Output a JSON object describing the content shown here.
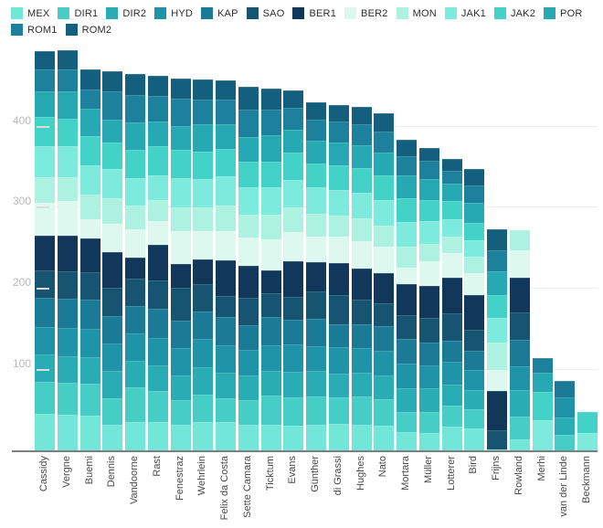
{
  "chart_data": {
    "type": "bar",
    "stacked": true,
    "legend_position": "top",
    "grid": true,
    "ylim": [
      0,
      494
    ],
    "yticks": [
      100,
      200,
      300,
      400
    ],
    "categories": [
      "Cassidy",
      "Vergne",
      "Buemi",
      "Dennis",
      "Vandoorne",
      "Rast",
      "Fenestraz",
      "Wehrlein",
      "Felix da Costa",
      "Sette Camara",
      "Ticktum",
      "Evans",
      "Günther",
      "di Grassi",
      "Hughes",
      "Nato",
      "Mortara",
      "Müller",
      "Lotterer",
      "Bird",
      "Frijns",
      "Rowland",
      "Merhi",
      "van der Linde",
      "Beckmann"
    ],
    "series": [
      {
        "name": "MEX",
        "color": "#72e6d9",
        "values": [
          46,
          45,
          44,
          33,
          36,
          36,
          33,
          36,
          36,
          33,
          33,
          32,
          33,
          34,
          33,
          32,
          24,
          22,
          30,
          28,
          2,
          15,
          0,
          0,
          0
        ]
      },
      {
        "name": "DIR1",
        "color": "#45cdc6",
        "values": [
          39,
          39,
          39,
          32,
          43,
          38,
          30,
          34,
          29,
          30,
          36,
          34,
          34,
          32,
          34,
          32,
          24,
          26,
          26,
          24,
          0,
          28,
          0,
          20,
          0
        ]
      },
      {
        "name": "DIR2",
        "color": "#2aacb5",
        "values": [
          34,
          33,
          33,
          34,
          32,
          32,
          30,
          34,
          32,
          30,
          30,
          32,
          32,
          30,
          30,
          30,
          30,
          30,
          26,
          24,
          0,
          32,
          0,
          22,
          0
        ]
      },
      {
        "name": "HYD",
        "color": "#1f93a8",
        "values": [
          34,
          35,
          35,
          34,
          34,
          34,
          34,
          34,
          34,
          32,
          32,
          34,
          30,
          32,
          30,
          30,
          30,
          28,
          28,
          24,
          0,
          30,
          0,
          24,
          0
        ]
      },
      {
        "name": "KAP",
        "color": "#1b7b96",
        "values": [
          36,
          36,
          36,
          34,
          34,
          36,
          34,
          34,
          34,
          30,
          34,
          30,
          34,
          28,
          30,
          30,
          30,
          28,
          26,
          24,
          0,
          32,
          0,
          21,
          0
        ]
      },
      {
        "name": "SAO",
        "color": "#175471",
        "values": [
          34,
          34,
          34,
          34,
          34,
          34,
          40,
          34,
          26,
          34,
          30,
          28,
          34,
          36,
          30,
          28,
          30,
          30,
          34,
          26,
          24,
          34,
          0,
          0,
          0
        ]
      },
      {
        "name": "BER1",
        "color": "#11375a",
        "values": [
          43,
          44,
          41,
          44,
          26,
          44,
          30,
          30,
          44,
          40,
          28,
          44,
          36,
          40,
          38,
          38,
          38,
          40,
          44,
          42,
          48,
          43,
          0,
          0,
          0
        ]
      },
      {
        "name": "BER2",
        "color": "#ddf8ee",
        "values": [
          40,
          42,
          24,
          35,
          34,
          30,
          40,
          35,
          36,
          34,
          38,
          36,
          32,
          32,
          34,
          32,
          20,
          30,
          30,
          28,
          26,
          34,
          0,
          0,
          0
        ]
      },
      {
        "name": "MON",
        "color": "#adf2e1",
        "values": [
          32,
          30,
          30,
          32,
          30,
          26,
          30,
          30,
          32,
          28,
          30,
          30,
          28,
          26,
          28,
          26,
          26,
          22,
          20,
          20,
          34,
          24,
          0,
          0,
          0
        ]
      },
      {
        "name": "JAK1",
        "color": "#7ceadc",
        "values": [
          38,
          38,
          36,
          36,
          34,
          30,
          36,
          34,
          36,
          34,
          34,
          34,
          32,
          32,
          32,
          32,
          30,
          28,
          22,
          20,
          30,
          0,
          38,
          0,
          22
        ]
      },
      {
        "name": "JAK2",
        "color": "#43d2c8",
        "values": [
          36,
          34,
          36,
          32,
          34,
          36,
          34,
          34,
          34,
          32,
          32,
          34,
          30,
          30,
          30,
          30,
          30,
          26,
          22,
          22,
          28,
          0,
          35,
          0,
          26
        ]
      },
      {
        "name": "POR",
        "color": "#26a9b3",
        "values": [
          32,
          34,
          34,
          29,
          34,
          30,
          30,
          34,
          30,
          30,
          32,
          28,
          28,
          28,
          28,
          28,
          28,
          26,
          22,
          24,
          30,
          0,
          24,
          0,
          0
        ]
      },
      {
        "name": "ROM1",
        "color": "#1d809d",
        "values": [
          27,
          27,
          24,
          34,
          34,
          32,
          34,
          30,
          30,
          34,
          32,
          27,
          26,
          26,
          26,
          26,
          24,
          22,
          16,
          22,
          26,
          0,
          18,
          0,
          0
        ]
      },
      {
        "name": "ROM2",
        "color": "#145e7e",
        "values": [
          22,
          23,
          25,
          25,
          26,
          25,
          24,
          25,
          24,
          28,
          26,
          22,
          21,
          21,
          21,
          22,
          20,
          16,
          14,
          20,
          26,
          0,
          0,
          0,
          0
        ]
      }
    ]
  }
}
